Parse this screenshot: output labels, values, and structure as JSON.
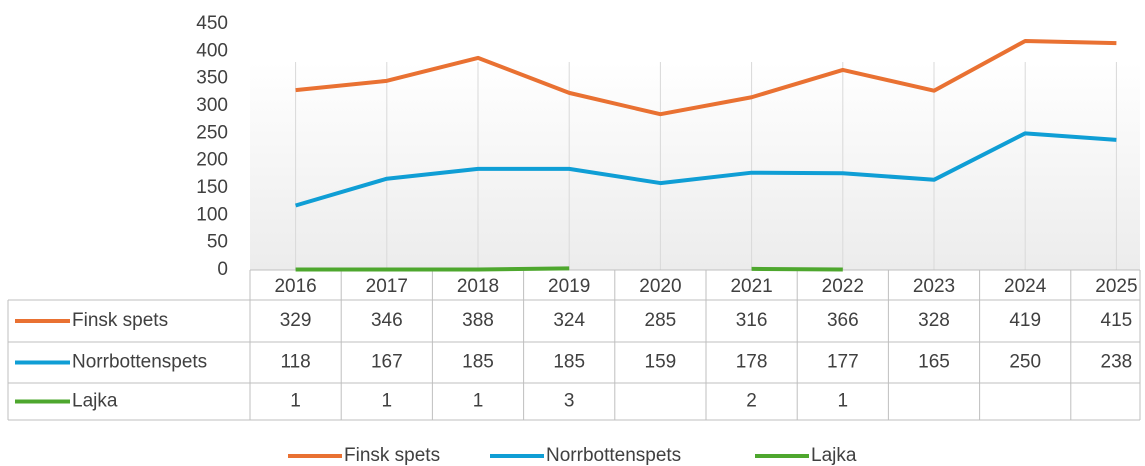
{
  "chart_data": {
    "type": "line",
    "categories": [
      "2016",
      "2017",
      "2018",
      "2019",
      "2020",
      "2021",
      "2022",
      "2023",
      "2024",
      "2025"
    ],
    "series": [
      {
        "name": "Finsk spets",
        "color": "#e97132",
        "values": [
          329,
          346,
          388,
          324,
          285,
          316,
          366,
          328,
          419,
          415
        ]
      },
      {
        "name": "Norrbottenspets",
        "color": "#0f9ed5",
        "values": [
          118,
          167,
          185,
          185,
          159,
          178,
          177,
          165,
          250,
          238
        ]
      },
      {
        "name": "Lajka",
        "color": "#4ea72e",
        "values": [
          1,
          1,
          1,
          3,
          null,
          2,
          1,
          null,
          null,
          null
        ]
      }
    ],
    "ylim": [
      0,
      450
    ],
    "yticks": [
      0,
      50,
      100,
      150,
      200,
      250,
      300,
      350,
      400,
      450
    ]
  }
}
